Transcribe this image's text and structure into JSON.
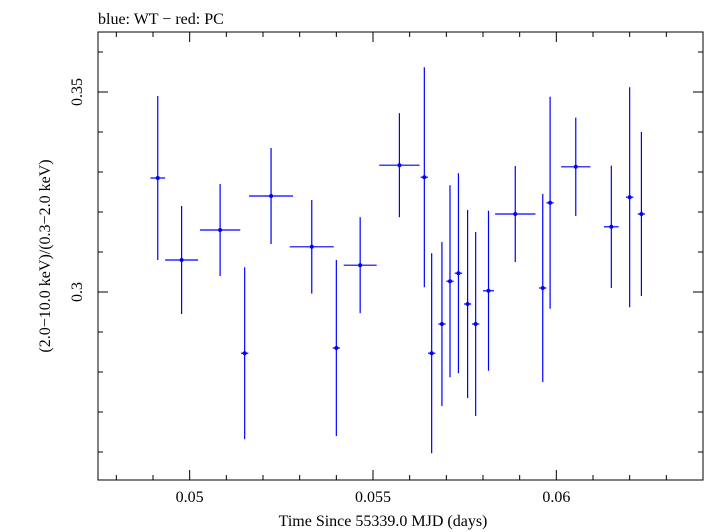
{
  "chart_data": {
    "type": "scatter",
    "title": "blue: WT − red: PC",
    "xlabel": "Time Since 55339.0 MJD (days)",
    "ylabel": "(2.0−10.0 keV)/(0.3−2.0 keV)",
    "xlim": [
      0.0475,
      0.064
    ],
    "ylim": [
      0.253,
      0.365
    ],
    "x_ticks": [
      {
        "value": 0.05,
        "label": "0.05"
      },
      {
        "value": 0.055,
        "label": "0.055"
      },
      {
        "value": 0.06,
        "label": "0.06"
      }
    ],
    "y_ticks": [
      {
        "value": 0.3,
        "label": "0.3"
      },
      {
        "value": 0.35,
        "label": "0.35"
      }
    ],
    "grid": false,
    "legend": "none",
    "series": [
      {
        "color": "#0000ff",
        "points": [
          {
            "x": 0.04913,
            "xerr": 0.0002,
            "y": 0.3285,
            "yerr": 0.0205
          },
          {
            "x": 0.04978,
            "xerr": 0.00045,
            "y": 0.308,
            "yerr": 0.0135
          },
          {
            "x": 0.05083,
            "xerr": 0.00055,
            "y": 0.3155,
            "yerr": 0.0115
          },
          {
            "x": 0.0515,
            "xerr": 0.0001,
            "y": 0.2847,
            "yerr": 0.0215
          },
          {
            "x": 0.05222,
            "xerr": 0.0006,
            "y": 0.324,
            "yerr": 0.012
          },
          {
            "x": 0.05333,
            "xerr": 0.0006,
            "y": 0.3113,
            "yerr": 0.0117
          },
          {
            "x": 0.054,
            "xerr": 0.0001,
            "y": 0.286,
            "yerr": 0.022
          },
          {
            "x": 0.05465,
            "xerr": 0.00045,
            "y": 0.3067,
            "yerr": 0.012
          },
          {
            "x": 0.05572,
            "xerr": 0.00055,
            "y": 0.3317,
            "yerr": 0.013
          },
          {
            "x": 0.0564,
            "xerr": 0.0001,
            "y": 0.3287,
            "yerr": 0.0275
          },
          {
            "x": 0.0566,
            "xerr": 0.0001,
            "y": 0.2847,
            "yerr": 0.025
          },
          {
            "x": 0.05688,
            "xerr": 0.0001,
            "y": 0.292,
            "yerr": 0.0205
          },
          {
            "x": 0.0571,
            "xerr": 0.0001,
            "y": 0.3027,
            "yerr": 0.024
          },
          {
            "x": 0.05733,
            "xerr": 0.0001,
            "y": 0.3047,
            "yerr": 0.025
          },
          {
            "x": 0.05758,
            "xerr": 0.0001,
            "y": 0.297,
            "yerr": 0.0235
          },
          {
            "x": 0.0578,
            "xerr": 0.0001,
            "y": 0.292,
            "yerr": 0.023
          },
          {
            "x": 0.05815,
            "xerr": 0.00015,
            "y": 0.3003,
            "yerr": 0.02
          },
          {
            "x": 0.05888,
            "xerr": 0.00055,
            "y": 0.3195,
            "yerr": 0.012
          },
          {
            "x": 0.05963,
            "xerr": 0.0001,
            "y": 0.301,
            "yerr": 0.0235
          },
          {
            "x": 0.05983,
            "xerr": 0.0001,
            "y": 0.3223,
            "yerr": 0.0265
          },
          {
            "x": 0.06053,
            "xerr": 0.0004,
            "y": 0.3313,
            "yerr": 0.0123
          },
          {
            "x": 0.0615,
            "xerr": 0.0002,
            "y": 0.3163,
            "yerr": 0.0153
          },
          {
            "x": 0.062,
            "xerr": 0.0001,
            "y": 0.3237,
            "yerr": 0.0275
          },
          {
            "x": 0.06232,
            "xerr": 0.0001,
            "y": 0.3195,
            "yerr": 0.0205
          }
        ]
      }
    ]
  }
}
